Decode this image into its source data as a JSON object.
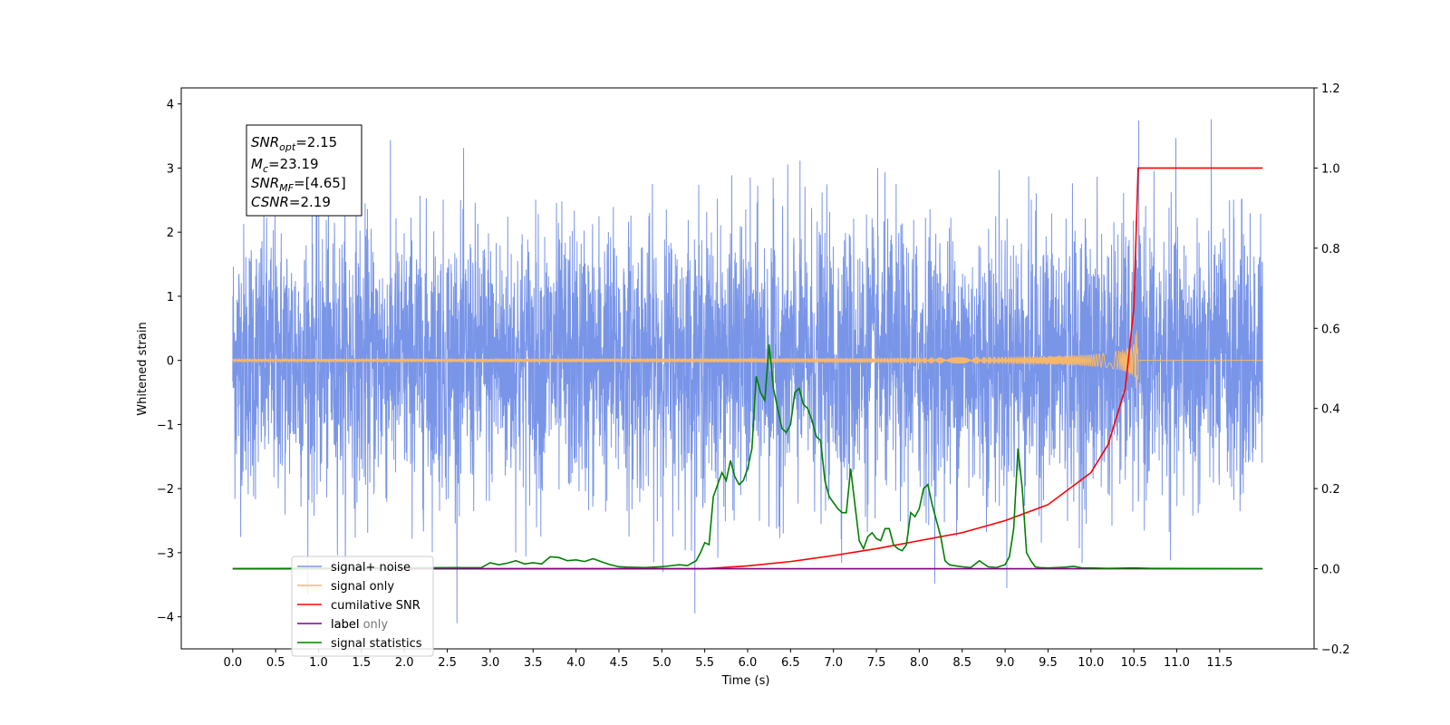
{
  "chart_data": {
    "type": "line",
    "xlabel": "Time (s)",
    "ylabel": "Whitened strain",
    "xlim": [
      -0.6,
      12.6
    ],
    "ylim_left": [
      -4.5,
      4.25
    ],
    "ylim_right": [
      -0.2,
      1.2
    ],
    "x_ticks": [
      0.0,
      0.5,
      1.0,
      1.5,
      2.0,
      2.5,
      3.0,
      3.5,
      4.0,
      4.5,
      5.0,
      5.5,
      6.0,
      6.5,
      7.0,
      7.5,
      8.0,
      8.5,
      9.0,
      9.5,
      10.0,
      10.5,
      11.0,
      11.5
    ],
    "x_tick_labels": [
      "0.0",
      "0.5",
      "1.0",
      "1.5",
      "2.0",
      "2.5",
      "3.0",
      "3.5",
      "4.0",
      "4.5",
      "5.0",
      "5.5",
      "6.0",
      "6.5",
      "7.0",
      "7.5",
      "8.0",
      "8.5",
      "9.0",
      "9.5",
      "10.0",
      "10.5",
      "11.0",
      "11.5"
    ],
    "y_left_ticks": [
      4,
      3,
      2,
      1,
      0,
      -1,
      -2,
      -3,
      -4
    ],
    "y_left_tick_labels": [
      "4",
      "3",
      "2",
      "1",
      "0",
      "−1",
      "−2",
      "−3",
      "−4"
    ],
    "y_right_ticks": [
      1.2,
      1.0,
      0.8,
      0.6,
      0.4,
      0.2,
      0.0,
      -0.2
    ],
    "y_right_tick_labels": [
      "1.2",
      "1.0",
      "0.8",
      "0.6",
      "0.4",
      "0.2",
      "0.0",
      "−0.2"
    ],
    "info_box": {
      "lines": [
        {
          "sym": "SNR",
          "sub": "opt",
          "rest": "=2.15"
        },
        {
          "sym": "M",
          "sub": "c",
          "rest": "=23.19"
        },
        {
          "sym": "SNR",
          "sub": "MF",
          "rest": "=[4.65]"
        },
        {
          "sym": "CSNR",
          "sub": "",
          "rest": "=2.19"
        }
      ]
    },
    "legend": {
      "placement": "lower-left",
      "entries": [
        "signal+ noise",
        "signal only",
        "cumilative SNR",
        "label",
        "signal statistics"
      ],
      "overlaid_text": "label only"
    },
    "series": [
      {
        "name": "signal+ noise",
        "axis": "left",
        "color": "#7995e8",
        "x_range": [
          0.0,
          12.0
        ],
        "amplitude_envelope": [
          -4.1,
          3.9
        ],
        "note_values": "dense whitened noise, sampled"
      },
      {
        "name": "signal only",
        "axis": "left",
        "color": "#f5b86a",
        "x_range": [
          0.0,
          10.55
        ],
        "peak_amplitude": 0.5,
        "merger_time": 10.55
      },
      {
        "name": "cumilative SNR",
        "axis": "right",
        "color": "#ff0000",
        "x": [
          0.0,
          5.5,
          6.0,
          6.5,
          7.0,
          7.5,
          8.0,
          8.5,
          9.0,
          9.5,
          10.0,
          10.2,
          10.4,
          10.5,
          10.55,
          12.0
        ],
        "y": [
          0.0,
          0.0,
          0.007,
          0.018,
          0.033,
          0.05,
          0.07,
          0.09,
          0.12,
          0.16,
          0.24,
          0.31,
          0.45,
          0.65,
          1.0,
          1.0
        ]
      },
      {
        "name": "label",
        "axis": "right",
        "color": "#800080",
        "x": [
          0.0,
          12.0
        ],
        "y": [
          0.0,
          0.0
        ]
      },
      {
        "name": "signal statistics",
        "axis": "right",
        "color": "#008000",
        "x": [
          0.0,
          2.9,
          3.0,
          3.1,
          3.2,
          3.3,
          3.4,
          3.5,
          3.6,
          3.7,
          3.8,
          3.9,
          4.0,
          4.1,
          4.2,
          4.3,
          4.4,
          4.5,
          4.6,
          4.8,
          5.0,
          5.2,
          5.3,
          5.4,
          5.45,
          5.5,
          5.55,
          5.6,
          5.65,
          5.7,
          5.75,
          5.8,
          5.85,
          5.9,
          5.95,
          6.0,
          6.05,
          6.1,
          6.15,
          6.2,
          6.25,
          6.3,
          6.35,
          6.4,
          6.45,
          6.5,
          6.55,
          6.6,
          6.65,
          6.7,
          6.75,
          6.8,
          6.85,
          6.9,
          6.95,
          7.0,
          7.05,
          7.1,
          7.15,
          7.2,
          7.25,
          7.3,
          7.35,
          7.4,
          7.45,
          7.5,
          7.55,
          7.6,
          7.65,
          7.7,
          7.75,
          7.8,
          7.85,
          7.9,
          7.95,
          8.0,
          8.05,
          8.1,
          8.15,
          8.2,
          8.25,
          8.3,
          8.35,
          8.4,
          8.5,
          8.6,
          8.7,
          8.8,
          8.9,
          9.0,
          9.05,
          9.1,
          9.15,
          9.2,
          9.25,
          9.3,
          9.35,
          9.4,
          9.5,
          9.6,
          9.7,
          9.8,
          9.9,
          10.0,
          10.2,
          10.5,
          10.7,
          12.0
        ],
        "y": [
          0.0,
          0.003,
          0.015,
          0.01,
          0.014,
          0.02,
          0.012,
          0.015,
          0.012,
          0.03,
          0.028,
          0.02,
          0.022,
          0.018,
          0.025,
          0.017,
          0.01,
          0.005,
          0.004,
          0.003,
          0.005,
          0.01,
          0.008,
          0.02,
          0.04,
          0.065,
          0.06,
          0.18,
          0.21,
          0.24,
          0.22,
          0.27,
          0.23,
          0.21,
          0.22,
          0.25,
          0.3,
          0.48,
          0.44,
          0.42,
          0.56,
          0.45,
          0.4,
          0.35,
          0.34,
          0.36,
          0.44,
          0.45,
          0.41,
          0.4,
          0.37,
          0.33,
          0.32,
          0.22,
          0.18,
          0.165,
          0.15,
          0.14,
          0.14,
          0.25,
          0.16,
          0.07,
          0.05,
          0.08,
          0.09,
          0.075,
          0.07,
          0.1,
          0.1,
          0.06,
          0.05,
          0.045,
          0.06,
          0.14,
          0.13,
          0.15,
          0.2,
          0.21,
          0.16,
          0.12,
          0.08,
          0.02,
          0.01,
          0.008,
          0.005,
          0.003,
          0.02,
          0.005,
          0.003,
          0.01,
          0.03,
          0.1,
          0.3,
          0.2,
          0.04,
          0.02,
          0.005,
          0.003,
          0.002,
          0.003,
          0.004,
          0.006,
          0.002,
          0.002,
          0.001,
          0.002,
          0.001,
          0.0
        ]
      }
    ],
    "grid": false
  }
}
